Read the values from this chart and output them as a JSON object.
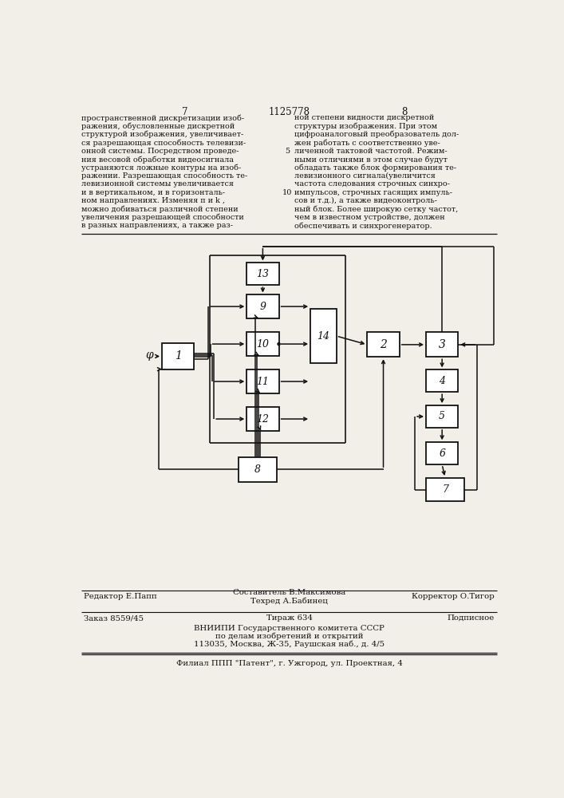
{
  "bg_color": "#f2efe9",
  "line_color": "#111111",
  "page_number_left": "7",
  "page_number_center": "1125778",
  "page_number_right": "8",
  "text_left": "пространственной дискретизации изоб-\nражения, обусловленные дискретной\nструктурой изображения, увеличивает-\nся разрешающая способность телевизи-\nонной системы. Посредством проведе-\nния весовой обработки видеосигнала\nустраняются ложные контуры на изоб-\nражении. Разрешающая способность те-\nлевизионной системы увеличивается\nи в вертикальном, и в горизонталь-\nном направлениях. Изменяя п и k ,\nможно добиваться различной степени\nувеличения разрешающей способности\nв разных направлениях, а также раз-",
  "text_right": "ной степени видности дискретной\nструктуры изображения. При этом\nцифроаналоговый преобразователь дол-\nжен работать с соответственно уве-\nличенной тактовой частотой. Режим-\nными отличиями в этом случае будут\nобладать также блок формирования те-\nлевизионного сигнала(увеличится\nчастота следования строчных синхро-\nимпульсов, строчных гасящих импуль-\nсов и т.д.), а также видеоконтроль-\nный блок. Более широкую сетку частот,\nчем в известном устройстве, должен\nобеспечивать и синхрогенератор.",
  "footer_left": "Редактор Е.Папп",
  "footer_center1": "Составитель В.Максимова",
  "footer_center2": "Техред А.Бабинец",
  "footer_right": "Корректор О.Тигор",
  "order_left": "Заказ 8559/45",
  "order_center": "Тираж 634",
  "order_right": "Подписное",
  "org_line1": "ВНИИПИ Государственного комитета СССР",
  "org_line2": "по делам изобретений и открытий",
  "org_line3": "113035, Москва, Ж-35, Раушская наб., д. 4/5",
  "patent_line": "Филиал ППП \"Патент\", г. Ужгород, ул. Проектная, 4"
}
